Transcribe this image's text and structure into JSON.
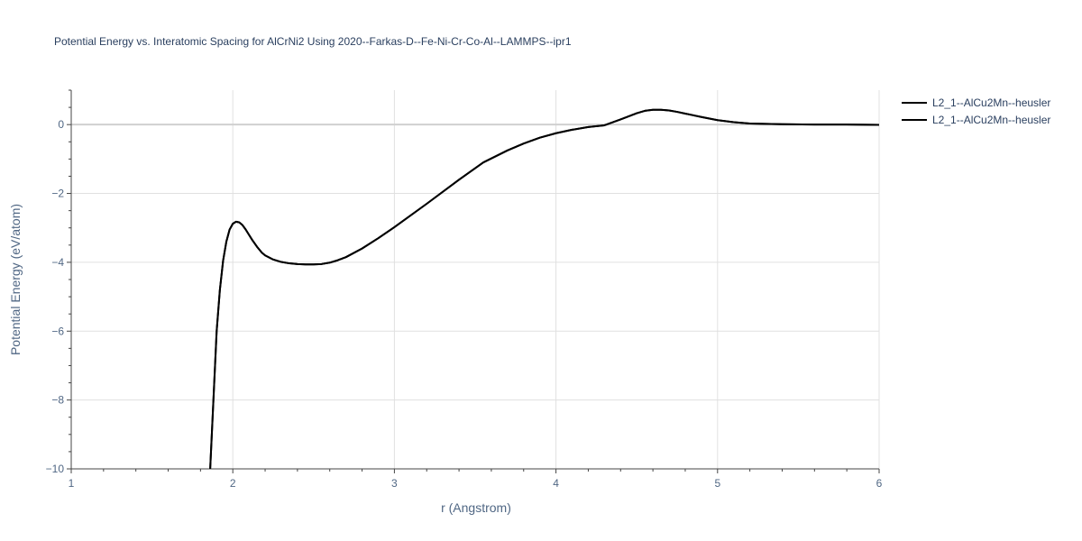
{
  "chart_data": {
    "type": "line",
    "title": "Potential Energy vs. Interatomic Spacing for AlCrNi2 Using 2020--Farkas-D--Fe-Ni-Cr-Co-Al--LAMMPS--ipr1",
    "xlabel": "r (Angstrom)",
    "ylabel": "Potential Energy (eV/atom)",
    "xlim": [
      1,
      6
    ],
    "ylim": [
      -10,
      1
    ],
    "xticks": [
      1,
      2,
      3,
      4,
      5,
      6
    ],
    "yticks": [
      -10,
      -8,
      -6,
      -4,
      -2,
      0
    ],
    "xtick_labels": [
      "1",
      "2",
      "3",
      "4",
      "5",
      "6"
    ],
    "ytick_labels": [
      "−10",
      "−8",
      "−6",
      "−4",
      "−2",
      "0"
    ],
    "grid": true,
    "legend_position": "top-right",
    "series": [
      {
        "name": "L2_1--AlCu2Mn--heusler",
        "color": "#000000",
        "x": [
          1.86,
          1.88,
          1.9,
          1.92,
          1.94,
          1.96,
          1.98,
          2.0,
          2.02,
          2.04,
          2.06,
          2.08,
          2.1,
          2.12,
          2.15,
          2.18,
          2.2,
          2.25,
          2.3,
          2.35,
          2.4,
          2.45,
          2.5,
          2.55,
          2.6,
          2.65,
          2.7,
          2.8,
          2.9,
          3.0,
          3.2,
          3.4,
          3.55,
          3.7,
          3.8,
          3.9,
          4.0,
          4.1,
          4.2,
          4.3,
          4.4,
          4.5,
          4.55,
          4.6,
          4.65,
          4.7,
          4.75,
          4.8,
          4.9,
          5.0,
          5.1,
          5.2,
          5.4,
          5.6,
          5.8,
          6.0
        ],
        "y": [
          -10.0,
          -8.0,
          -6.0,
          -4.8,
          -3.95,
          -3.4,
          -3.05,
          -2.88,
          -2.82,
          -2.84,
          -2.92,
          -3.05,
          -3.2,
          -3.35,
          -3.55,
          -3.72,
          -3.8,
          -3.92,
          -3.99,
          -4.03,
          -4.05,
          -4.06,
          -4.06,
          -4.05,
          -4.01,
          -3.94,
          -3.85,
          -3.6,
          -3.3,
          -2.98,
          -2.3,
          -1.6,
          -1.1,
          -0.75,
          -0.55,
          -0.38,
          -0.25,
          -0.15,
          -0.07,
          -0.02,
          0.15,
          0.33,
          0.4,
          0.43,
          0.43,
          0.41,
          0.37,
          0.32,
          0.22,
          0.13,
          0.07,
          0.03,
          0.01,
          0.0,
          0.0,
          -0.01
        ]
      },
      {
        "name": "L2_1--AlCu2Mn--heusler",
        "color": "#000000",
        "x": [
          1.86,
          1.88,
          1.9,
          1.92,
          1.94,
          1.96,
          1.98,
          2.0,
          2.02,
          2.04,
          2.06,
          2.08,
          2.1,
          2.12,
          2.15,
          2.18,
          2.2,
          2.25,
          2.3,
          2.35,
          2.4,
          2.45,
          2.5,
          2.55,
          2.6,
          2.65,
          2.7,
          2.8,
          2.9,
          3.0,
          3.2,
          3.4,
          3.55,
          3.7,
          3.8,
          3.9,
          4.0,
          4.1,
          4.2,
          4.3,
          4.4,
          4.5,
          4.55,
          4.6,
          4.65,
          4.7,
          4.75,
          4.8,
          4.9,
          5.0,
          5.1,
          5.2,
          5.4,
          5.6,
          5.8,
          6.0
        ],
        "y": [
          -10.0,
          -8.0,
          -6.0,
          -4.8,
          -3.95,
          -3.4,
          -3.05,
          -2.88,
          -2.82,
          -2.84,
          -2.92,
          -3.05,
          -3.2,
          -3.35,
          -3.55,
          -3.72,
          -3.8,
          -3.92,
          -3.99,
          -4.03,
          -4.05,
          -4.06,
          -4.06,
          -4.05,
          -4.01,
          -3.94,
          -3.85,
          -3.6,
          -3.3,
          -2.98,
          -2.3,
          -1.6,
          -1.1,
          -0.75,
          -0.55,
          -0.38,
          -0.25,
          -0.15,
          -0.07,
          -0.02,
          0.15,
          0.33,
          0.4,
          0.43,
          0.43,
          0.41,
          0.37,
          0.32,
          0.22,
          0.13,
          0.07,
          0.03,
          0.01,
          0.0,
          0.0,
          -0.01
        ]
      }
    ]
  }
}
